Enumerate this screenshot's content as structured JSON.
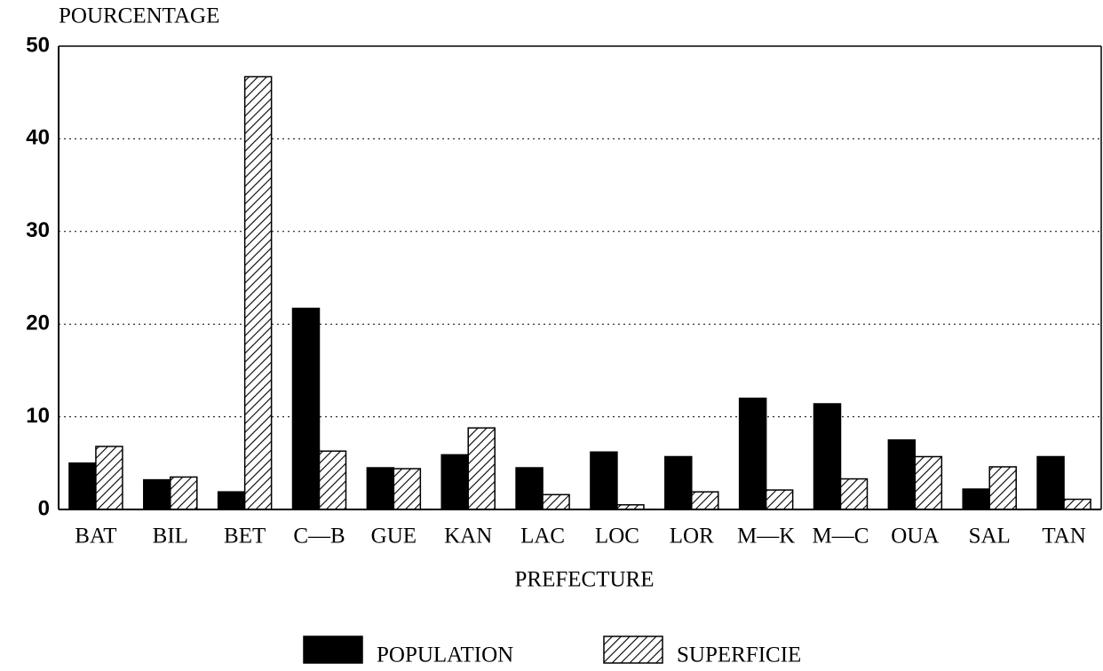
{
  "chart_data": {
    "type": "bar",
    "ylabel": "POURCENTAGE",
    "xlabel": "PREFECTURE",
    "categories": [
      "BAT",
      "BIL",
      "BET",
      "C—B",
      "GUE",
      "KAN",
      "LAC",
      "LOC",
      "LOR",
      "M—K",
      "M—C",
      "OUA",
      "SAL",
      "TAN"
    ],
    "series": [
      {
        "name": "POPULATION",
        "color": "#000000",
        "hatch": false,
        "values": [
          5.0,
          3.2,
          1.9,
          21.7,
          4.5,
          5.9,
          4.5,
          6.2,
          5.7,
          12.0,
          11.4,
          7.5,
          2.2,
          5.7
        ]
      },
      {
        "name": "SUPERFICIE",
        "color": "#000000",
        "hatch": true,
        "values": [
          6.8,
          3.5,
          46.7,
          6.3,
          4.4,
          8.8,
          1.6,
          0.5,
          1.9,
          2.1,
          3.3,
          5.7,
          4.6,
          1.1
        ]
      }
    ],
    "ylim": [
      0,
      50
    ],
    "yticks": [
      0,
      10,
      20,
      30,
      40,
      50
    ],
    "grid": true,
    "legend": "bottom"
  }
}
